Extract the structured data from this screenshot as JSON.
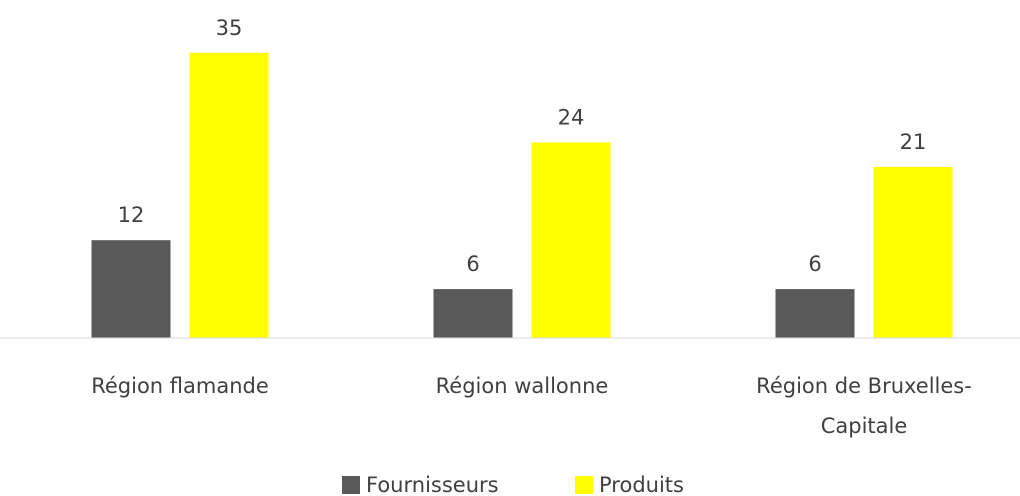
{
  "chart_data": {
    "type": "bar",
    "categories": [
      "Région flamande",
      "Région wallonne",
      "Région de Bruxelles-Capitale"
    ],
    "series": [
      {
        "name": "Fournisseurs",
        "color": "#595959",
        "values": [
          12,
          6,
          6
        ]
      },
      {
        "name": "Produits",
        "color": "#ffff00",
        "values": [
          35,
          24,
          21
        ]
      }
    ],
    "ylim": [
      0,
      40
    ]
  }
}
